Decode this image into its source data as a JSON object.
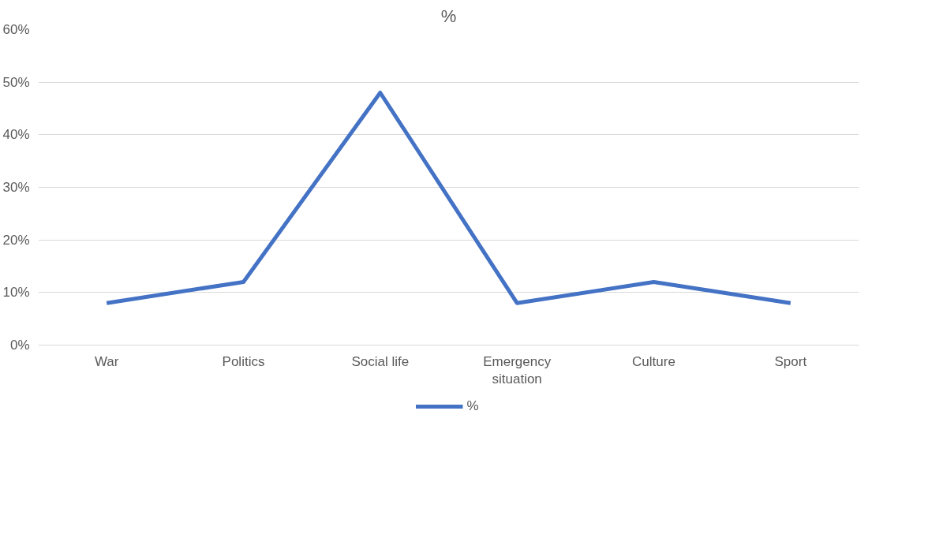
{
  "chart_data": {
    "type": "line",
    "title": "%",
    "categories": [
      "War",
      "Politics",
      "Social life",
      "Emergency situation",
      "Culture",
      "Sport"
    ],
    "series": [
      {
        "name": "%",
        "color": "#4472c4",
        "values": [
          8,
          12,
          48,
          8,
          12,
          8
        ]
      }
    ],
    "ylim": [
      0,
      60
    ],
    "yticks": [
      {
        "value": 0,
        "label": "0%"
      },
      {
        "value": 10,
        "label": "10%"
      },
      {
        "value": 20,
        "label": "20%"
      },
      {
        "value": 30,
        "label": "30%"
      },
      {
        "value": 40,
        "label": "40%"
      },
      {
        "value": 50,
        "label": "50%"
      },
      {
        "value": 60,
        "label": "60%"
      }
    ],
    "grid": "y",
    "legend": "bottom",
    "marker": "none",
    "line_style": "solid"
  }
}
